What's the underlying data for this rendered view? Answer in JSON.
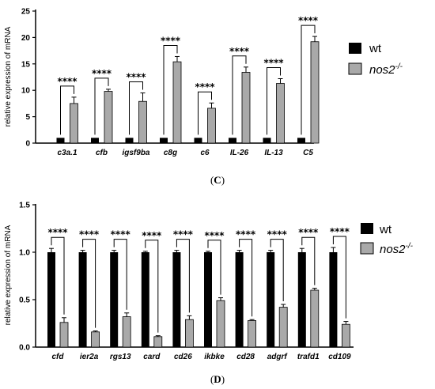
{
  "chart_data": [
    {
      "type": "bar",
      "panel": "C",
      "ylabel": "relative expression of mRNA",
      "ylim": [
        0,
        25
      ],
      "yticks": [
        "0",
        "5",
        "10",
        "15",
        "20",
        "25"
      ],
      "categories": [
        "c3a.1",
        "cfb",
        "igsf9ba",
        "c8g",
        "c6",
        "IL-26",
        "IL-13",
        "C5"
      ],
      "series": [
        {
          "name": "wt",
          "color": "#000000",
          "values": [
            1,
            1,
            1,
            1,
            1,
            1,
            1,
            1
          ],
          "errors": [
            0,
            0,
            0,
            0,
            0,
            0,
            0,
            0
          ]
        },
        {
          "name": "nos2-/-",
          "color": "#a9a9a9",
          "values": [
            7.5,
            9.8,
            7.9,
            15.4,
            6.6,
            13.4,
            11.3,
            19.2
          ],
          "errors": [
            1.2,
            0.4,
            1.6,
            1.0,
            1.0,
            1.0,
            0.9,
            1.0
          ]
        }
      ],
      "significance": [
        "****",
        "****",
        "****",
        "****",
        "****",
        "****",
        "****",
        "****"
      ],
      "legend_position": "right"
    },
    {
      "type": "bar",
      "panel": "D",
      "ylabel": "relative expression of mRNA",
      "ylim": [
        0,
        1.5
      ],
      "yticks": [
        "0.0",
        "0.5",
        "1.0",
        "1.5"
      ],
      "categories": [
        "cfd",
        "ier2a",
        "rgs13",
        "card",
        "cd26",
        "ikbke",
        "cd28",
        "adgrf",
        "trafd1",
        "cd109"
      ],
      "series": [
        {
          "name": "wt",
          "color": "#000000",
          "values": [
            1.0,
            1.0,
            1.0,
            1.0,
            1.0,
            1.0,
            1.0,
            1.0,
            1.0,
            1.0
          ],
          "errors": [
            0.04,
            0.02,
            0.02,
            0.01,
            0.02,
            0.01,
            0.02,
            0.02,
            0.04,
            0.05
          ]
        },
        {
          "name": "nos2-/-",
          "color": "#a9a9a9",
          "values": [
            0.26,
            0.16,
            0.32,
            0.11,
            0.29,
            0.49,
            0.28,
            0.42,
            0.6,
            0.24
          ],
          "errors": [
            0.05,
            0.01,
            0.04,
            0.01,
            0.04,
            0.03,
            0.01,
            0.03,
            0.02,
            0.03
          ]
        }
      ],
      "significance": [
        "****",
        "****",
        "****",
        "****",
        "****",
        "****",
        "****",
        "****",
        "****",
        "****"
      ],
      "legend_position": "right"
    }
  ],
  "legend": {
    "wt_label": "wt",
    "nos_base": "nos2",
    "nos_sup": "-/-"
  },
  "panel_labels": {
    "c_open": "(",
    "c": "C",
    "c_close": ")",
    "d_open": "(",
    "d": "D",
    "d_close": ")"
  }
}
